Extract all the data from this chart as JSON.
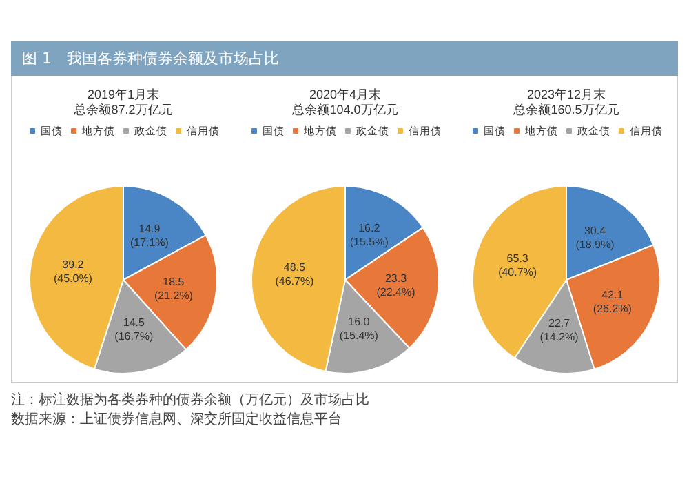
{
  "chart_data": [
    {
      "type": "pie",
      "title": "2019年1月末",
      "subtitle": "总余额87.2万亿元",
      "categories": [
        "国债",
        "地方债",
        "政金债",
        "信用债"
      ],
      "values": [
        14.9,
        18.5,
        14.5,
        39.2
      ],
      "colors": [
        "#4a86c5",
        "#e8773a",
        "#a5a5a5",
        "#f4b940"
      ],
      "value_labels": [
        "14.9\n(17.1%)",
        "18.5\n(21.2%)",
        "14.5\n(16.7%)",
        "39.2\n(45.0%)"
      ],
      "legend": "top",
      "annotations": [
        "图 1　我国各券种债券余额及市场占比",
        "注：标注数据为各类券种的债券余额（万亿元）及市场占比",
        "数据来源：上证债券信息网、深交所固定收益信息平台"
      ]
    },
    {
      "type": "pie",
      "title": "2020年4月末",
      "subtitle": "总余额104.0万亿元",
      "categories": [
        "国债",
        "地方债",
        "政金债",
        "信用债"
      ],
      "values": [
        16.2,
        23.3,
        16.0,
        48.5
      ],
      "colors": [
        "#4a86c5",
        "#e8773a",
        "#a5a5a5",
        "#f4b940"
      ],
      "value_labels": [
        "16.2\n(15.5%)",
        "23.3\n(22.4%)",
        "16.0\n(15.4%)",
        "48.5\n(46.7%)"
      ],
      "legend": "top"
    },
    {
      "type": "pie",
      "title": "2023年12月末",
      "subtitle": "总余额160.5万亿元",
      "categories": [
        "国债",
        "地方债",
        "政金债",
        "信用债"
      ],
      "values": [
        30.4,
        42.1,
        22.7,
        65.3
      ],
      "colors": [
        "#4a86c5",
        "#e8773a",
        "#a5a5a5",
        "#f4b940"
      ],
      "value_labels": [
        "30.4\n(18.9%)",
        "42.1\n(26.2%)",
        "22.7\n(14.2%)",
        "65.3\n(40.7%)"
      ],
      "legend": "top"
    }
  ]
}
